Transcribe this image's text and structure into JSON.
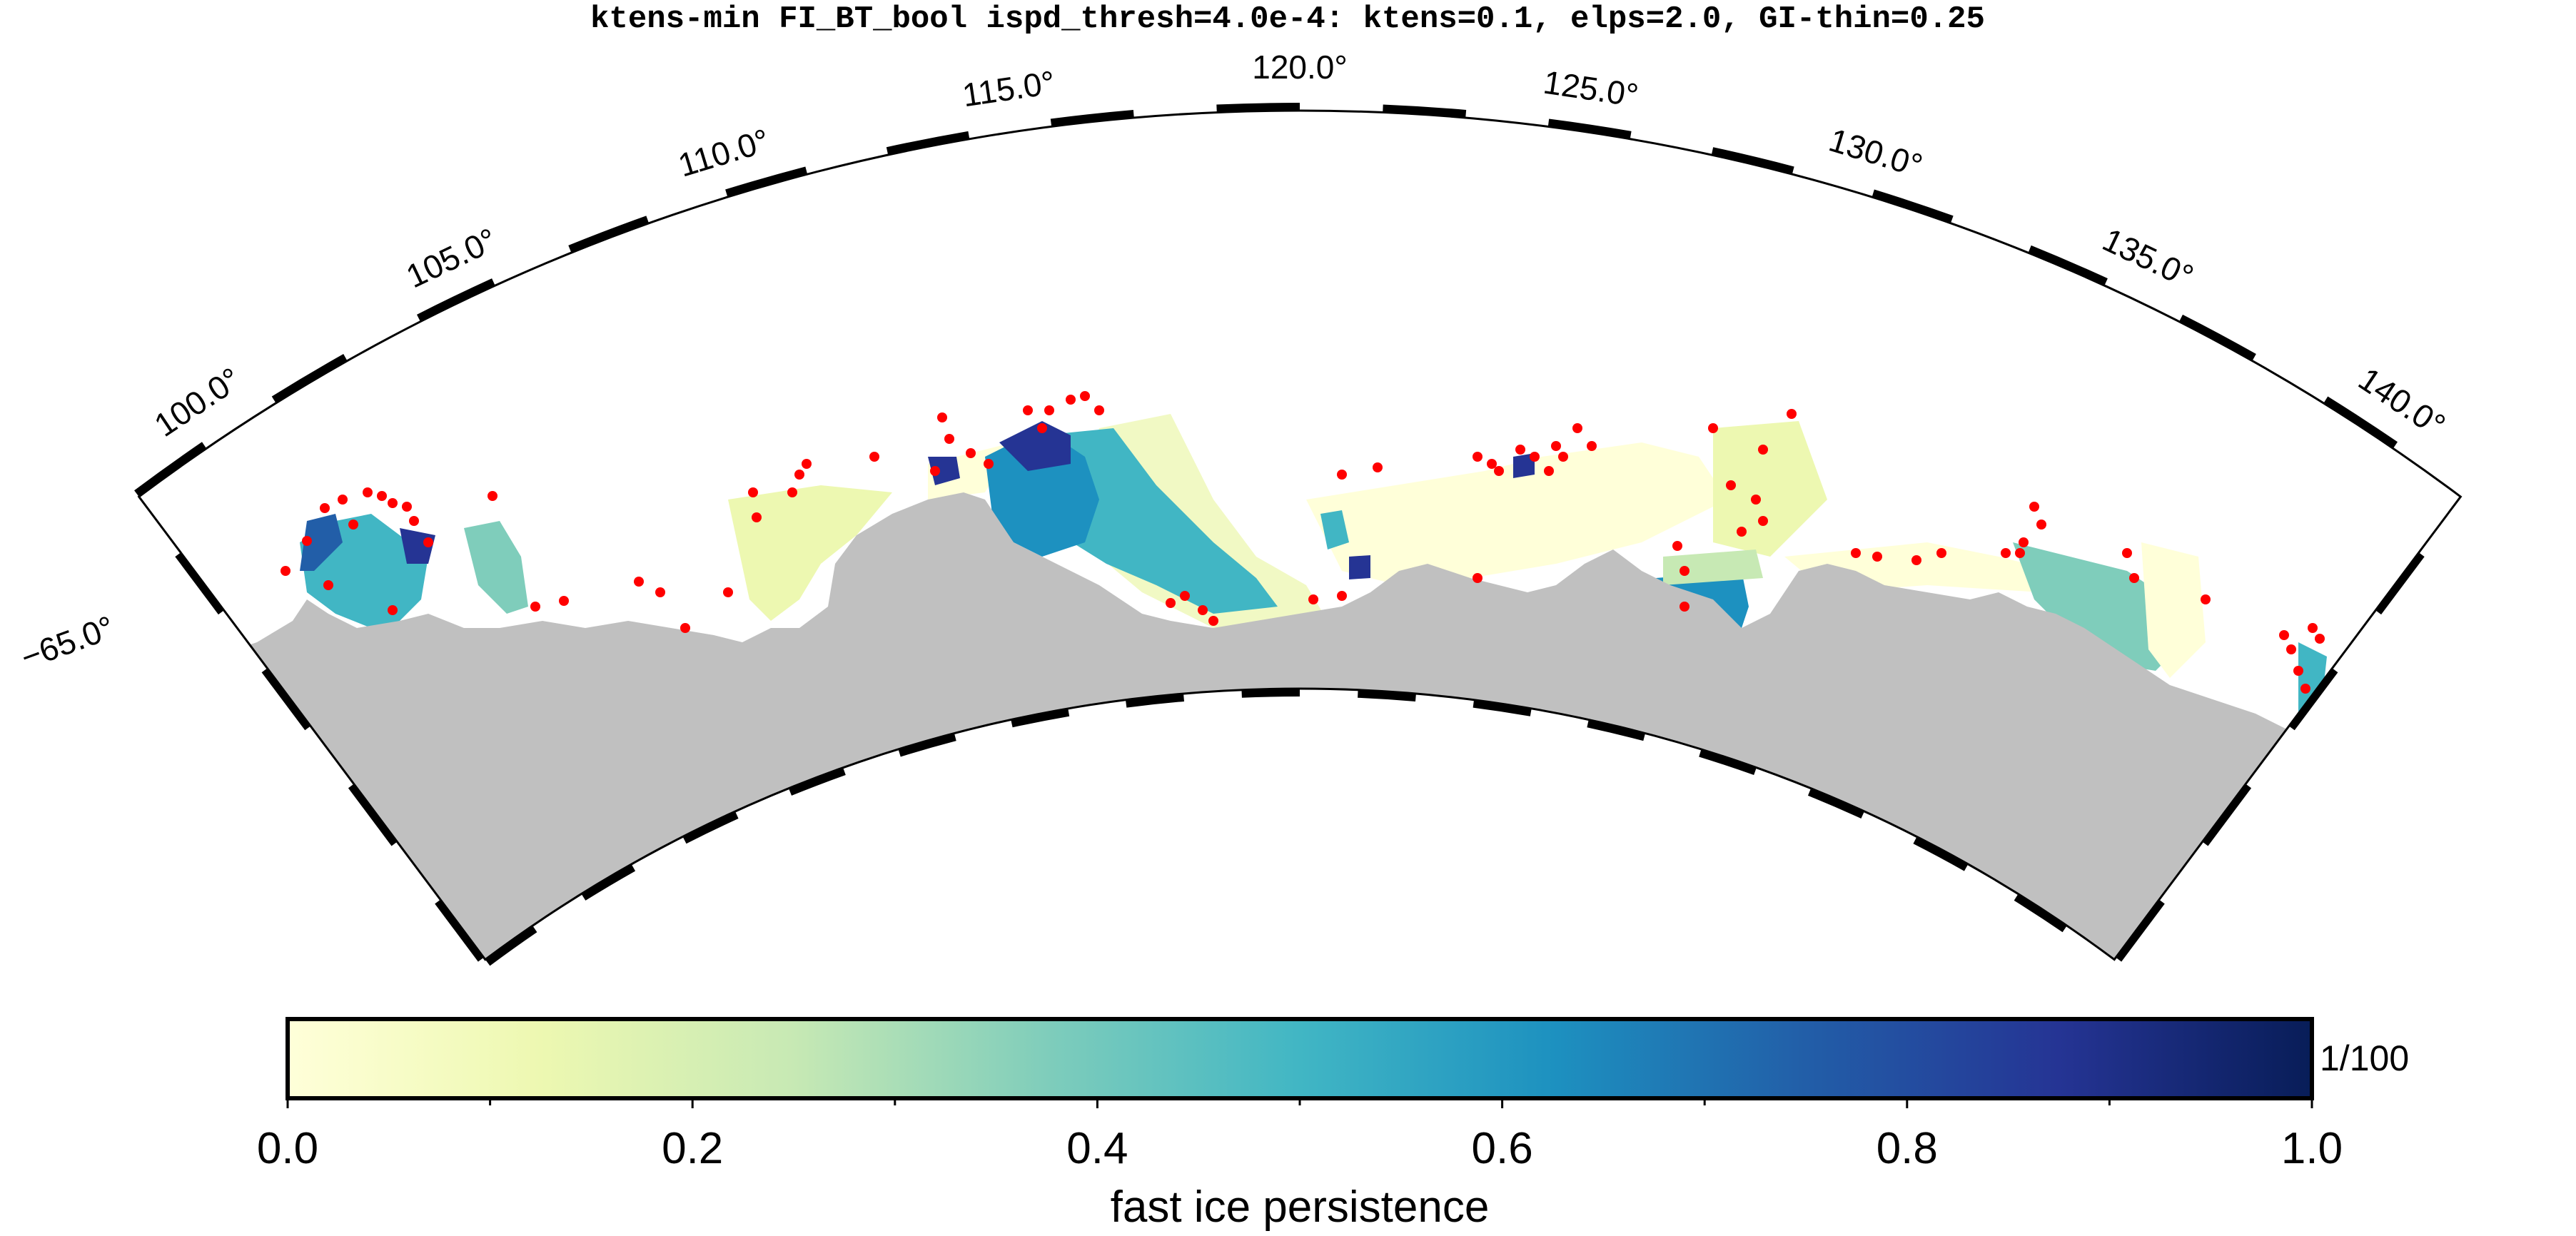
{
  "title": "ktens-min FI_BT_bool ispd_thresh=4.0e-4: ktens=0.1, elps=2.0, GI-thin=0.25",
  "map": {
    "longitude_labels": [
      "100.0°",
      "105.0°",
      "110.0°",
      "115.0°",
      "120.0°",
      "125.0°",
      "130.0°",
      "135.0°",
      "140.0°"
    ],
    "latitude_labels": [
      "−65.0°"
    ]
  },
  "colorbar": {
    "label": "fast ice persistence",
    "unit": "1/100",
    "ticks": [
      "0.0",
      "0.2",
      "0.4",
      "0.6",
      "0.8",
      "1.0"
    ],
    "colormap": [
      "#ffffd9",
      "#edf8b1",
      "#c7e9b4",
      "#7fcdbb",
      "#41b6c4",
      "#1d91c0",
      "#225ea8",
      "#253494",
      "#081d58"
    ],
    "range": [
      0.0,
      1.0
    ]
  },
  "colors": {
    "land": "#c0c0c0",
    "grounded_iceberg_points": "#ff0000",
    "frame": "#000000"
  }
}
